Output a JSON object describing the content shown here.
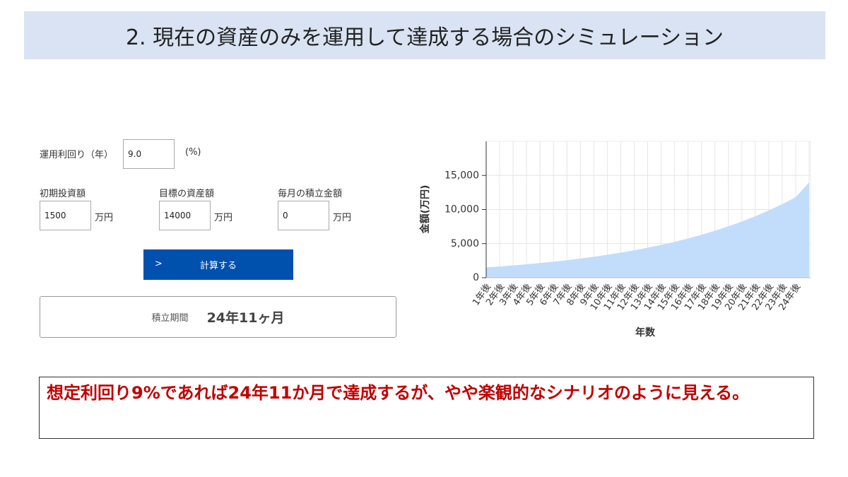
{
  "header": {
    "title": "2. 現在の資産のみを運用して達成する場合のシミュレーション"
  },
  "form": {
    "rate": {
      "label": "運用利回り（年）",
      "value": "9.0",
      "unit": "(%)"
    },
    "initial": {
      "label": "初期投資額",
      "value": "1500",
      "unit": "万円"
    },
    "target": {
      "label": "目標の資産額",
      "value": "14000",
      "unit": "万円"
    },
    "monthly": {
      "label": "毎月の積立金額",
      "value": "0",
      "unit": "万円"
    },
    "button": {
      "icon": ">",
      "label": "計算する"
    }
  },
  "result": {
    "label": "積立期間",
    "value": "24年11ヶ月"
  },
  "note": "想定利回り9%であれば24年11か月で達成するが、やや楽観的なシナリオのように見える。",
  "chart_data": {
    "type": "area",
    "xlabel": "年数",
    "ylabel": "金額(万円)",
    "categories": [
      "1年後",
      "2年後",
      "3年後",
      "4年後",
      "5年後",
      "6年後",
      "7年後",
      "8年後",
      "9年後",
      "10年後",
      "11年後",
      "12年後",
      "13年後",
      "14年後",
      "15年後",
      "16年後",
      "17年後",
      "18年後",
      "19年後",
      "20年後",
      "21年後",
      "22年後",
      "23年後",
      "24年後",
      null
    ],
    "series": [
      {
        "name": null,
        "color": "#c2dcfc",
        "values": [
          1500,
          1641,
          1795,
          1963,
          2147,
          2349,
          2569,
          2810,
          3074,
          3362,
          3677,
          4022,
          4400,
          4812,
          5264,
          5757,
          6298,
          6888,
          7535,
          8241,
          9014,
          9860,
          10785,
          11797,
          14000
        ]
      }
    ],
    "ylim": [
      0,
      20000
    ],
    "yticks": [
      0,
      {
        "value": 5000,
        "label": "5,000"
      },
      {
        "value": 10000,
        "label": "10,000"
      },
      {
        "value": 15000,
        "label": "15,000"
      }
    ],
    "grid": true
  }
}
